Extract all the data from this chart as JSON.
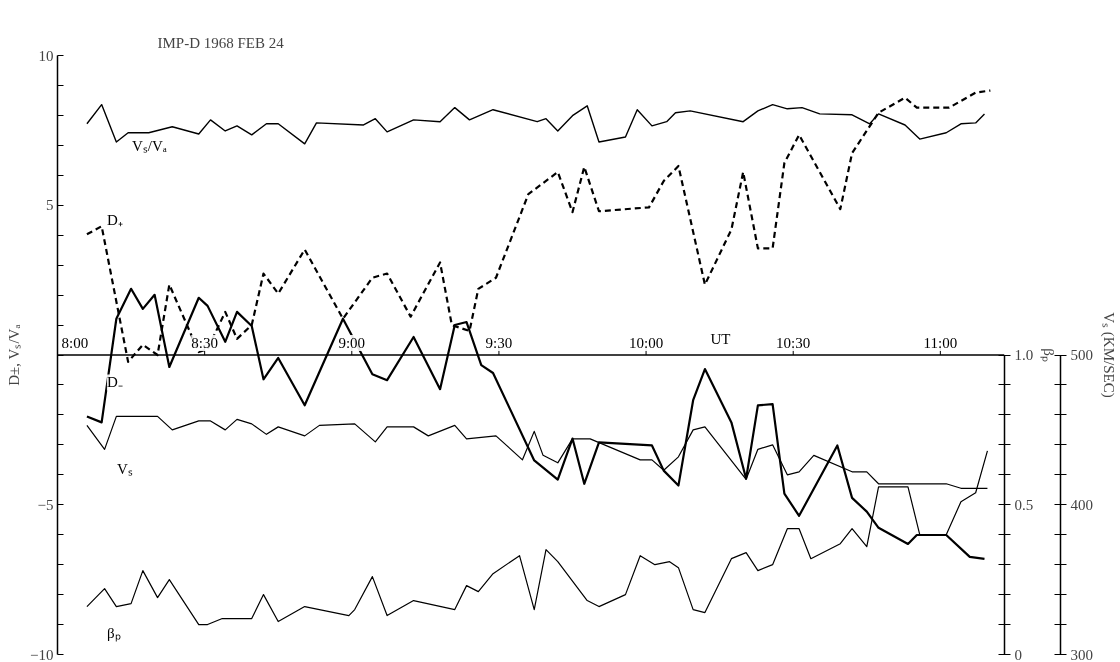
{
  "chart_data": {
    "type": "line",
    "title": "IMP-D 1968 FEB 24",
    "xlabel": "UT",
    "ylabel": "D±, Vₛ/Vₐ",
    "y2label": "βₚ",
    "y3label": "Vₛ (KM/SEC)",
    "xlim": [
      8,
      11.218
    ],
    "ylim": [
      -10,
      10
    ],
    "y2lim": [
      0,
      1
    ],
    "y3lim": [
      300,
      500
    ],
    "xticks": [
      {
        "value": 8,
        "label": "8:00"
      },
      {
        "value": 8.5,
        "label": "8:30"
      },
      {
        "value": 9,
        "label": "9:00"
      },
      {
        "value": 9.5,
        "label": "9:30"
      },
      {
        "value": 10,
        "label": "10:00"
      },
      {
        "value": 10.5,
        "label": "10:30"
      },
      {
        "value": 11,
        "label": "11:00"
      }
    ],
    "yticks": [
      10,
      {
        "value": 9,
        "label": null
      },
      {
        "value": 8,
        "label": null
      },
      {
        "value": 7,
        "label": null
      },
      {
        "value": 6,
        "label": null
      },
      5,
      {
        "value": 4,
        "label": null
      },
      {
        "value": 3,
        "label": null
      },
      {
        "value": 2,
        "label": null
      },
      {
        "value": 1,
        "label": null
      },
      {
        "value": 0,
        "label": null
      },
      {
        "value": -1,
        "label": null
      },
      {
        "value": -2,
        "label": null
      },
      {
        "value": -3,
        "label": null
      },
      {
        "value": -4,
        "label": null
      },
      {
        "value": -5,
        "label": "−5"
      },
      {
        "value": -6,
        "label": null
      },
      {
        "value": -7,
        "label": null
      },
      {
        "value": -8,
        "label": null
      },
      {
        "value": -9,
        "label": null
      },
      {
        "value": -10,
        "label": "−10"
      }
    ],
    "y2ticks": [
      0,
      {
        "value": 0.1,
        "label": null
      },
      {
        "value": 0.2,
        "label": null
      },
      {
        "value": 0.3,
        "label": null
      },
      {
        "value": 0.4,
        "label": null
      },
      0.5,
      {
        "value": 0.6,
        "label": null
      },
      {
        "value": 0.7,
        "label": null
      },
      {
        "value": 0.8,
        "label": null
      },
      {
        "value": 0.9,
        "label": null
      },
      {
        "value": 1,
        "label": "1.0"
      }
    ],
    "y3ticks": [
      300,
      {
        "value": 320,
        "label": null
      },
      {
        "value": 340,
        "label": null
      },
      {
        "value": 360,
        "label": null
      },
      {
        "value": 380,
        "label": null
      },
      400,
      {
        "value": 420,
        "label": null
      },
      {
        "value": 440,
        "label": null
      },
      {
        "value": 460,
        "label": null
      },
      {
        "value": 480,
        "label": null
      },
      500
    ],
    "grid": false,
    "marker": "none",
    "series": [
      {
        "name": "Vₛ/Vₐ",
        "color": "#000000",
        "line_style": "solid",
        "x": [
          8.1,
          8.15,
          8.2,
          8.24,
          8.31,
          8.39,
          8.48,
          8.52,
          8.57,
          8.61,
          8.66,
          8.71,
          8.75,
          8.84,
          8.88,
          9.04,
          9.08,
          9.12,
          9.21,
          9.3,
          9.35,
          9.4,
          9.48,
          9.63,
          9.66,
          9.7,
          9.75,
          9.8,
          9.84,
          9.93,
          9.97,
          10.02,
          10.07,
          10.1,
          10.15,
          10.33,
          10.38,
          10.43,
          10.48,
          10.53,
          10.59,
          10.7,
          10.76,
          10.79,
          10.88,
          10.93,
          11.02,
          11.07,
          11.12,
          11.15
        ],
        "values": [
          7.72,
          8.36,
          7.11,
          7.42,
          7.42,
          7.62,
          7.38,
          7.85,
          7.48,
          7.65,
          7.35,
          7.72,
          7.72,
          7.05,
          7.75,
          7.68,
          7.89,
          7.45,
          7.85,
          7.79,
          8.26,
          7.85,
          8.19,
          7.79,
          7.89,
          7.48,
          7.99,
          8.32,
          7.11,
          7.28,
          8.19,
          7.65,
          7.79,
          8.09,
          8.15,
          7.79,
          8.15,
          8.36,
          8.22,
          8.26,
          8.05,
          8.02,
          7.72,
          8.05,
          7.68,
          7.21,
          7.42,
          7.72,
          7.75,
          8.05
        ]
      },
      {
        "name": "D₊",
        "color": "#000000",
        "line_style": "dashed",
        "x": [
          8.1,
          8.15,
          8.24,
          8.29,
          8.34,
          8.38,
          8.48,
          8.51,
          8.57,
          8.61,
          8.66,
          8.7,
          8.75,
          8.84,
          8.97,
          9.07,
          9.12,
          9.2,
          9.3,
          9.34,
          9.4,
          9.43,
          9.49,
          9.6,
          9.7,
          9.75,
          9.79,
          9.84,
          10.01,
          10.06,
          10.11,
          10.2,
          10.29,
          10.33,
          10.38,
          10.43,
          10.47,
          10.52,
          10.66,
          10.7,
          10.79,
          10.88,
          10.92,
          11.03,
          11.12,
          11.17
        ],
        "values": [
          4.03,
          4.3,
          -0.23,
          0.34,
          0.0,
          2.35,
          0.1,
          0.2,
          1.44,
          0.54,
          1.0,
          2.72,
          2.05,
          3.52,
          1.21,
          2.58,
          2.72,
          1.28,
          3.09,
          1.0,
          0.8,
          2.21,
          2.58,
          5.37,
          6.11,
          4.77,
          6.28,
          4.8,
          4.93,
          5.81,
          6.31,
          2.35,
          4.19,
          6.11,
          3.56,
          3.56,
          6.41,
          7.35,
          4.87,
          6.74,
          8.09,
          8.59,
          8.26,
          8.26,
          8.76,
          8.83
        ]
      },
      {
        "name": "D₋",
        "color": "#000000",
        "line_style": "solid",
        "x": [
          8.1,
          8.15,
          8.2,
          8.25,
          8.29,
          8.33,
          8.38,
          8.48,
          8.51,
          8.57,
          8.61,
          8.66,
          8.7,
          8.75,
          8.84,
          8.97,
          9.07,
          9.12,
          9.21,
          9.3,
          9.35,
          9.39,
          9.44,
          9.48,
          9.62,
          9.7,
          9.75,
          9.79,
          9.84,
          10.02,
          10.06,
          10.11,
          10.16,
          10.2,
          10.29,
          10.34,
          10.38,
          10.43,
          10.47,
          10.52,
          10.65,
          10.7,
          10.75,
          10.79,
          10.89,
          10.92,
          11.02,
          11.1,
          11.15
        ],
        "values": [
          -2.05,
          -2.25,
          1.21,
          2.21,
          1.54,
          2.01,
          -0.4,
          1.91,
          1.64,
          0.44,
          1.44,
          0.97,
          -0.81,
          -0.1,
          -1.68,
          1.21,
          -0.64,
          -0.84,
          0.6,
          -1.14,
          1.0,
          1.1,
          -0.34,
          -0.6,
          -3.52,
          -4.16,
          -2.79,
          -4.3,
          -2.92,
          -3.02,
          -3.86,
          -4.36,
          -1.51,
          -0.47,
          -2.25,
          -4.13,
          -1.68,
          -1.64,
          -4.63,
          -5.37,
          -3.02,
          -4.77,
          -5.23,
          -5.77,
          -6.31,
          -6.01,
          -6.01,
          -6.74,
          -6.81
        ]
      },
      {
        "name": "Vₛ",
        "color": "#000000",
        "line_style": "solid",
        "axis": "y3",
        "x": [
          8.1,
          8.16,
          8.2,
          8.34,
          8.39,
          8.48,
          8.52,
          8.57,
          8.61,
          8.66,
          8.71,
          8.75,
          8.84,
          8.89,
          9.01,
          9.08,
          9.12,
          9.21,
          9.26,
          9.35,
          9.39,
          9.49,
          9.58,
          9.62,
          9.65,
          9.7,
          9.75,
          9.81,
          9.98,
          10.02,
          10.06,
          10.11,
          10.16,
          10.2,
          10.34,
          10.38,
          10.43,
          10.48,
          10.52,
          10.57,
          10.7,
          10.75,
          10.79,
          10.89,
          11.02,
          11.07,
          11.16
        ],
        "values": [
          453,
          437,
          459,
          459,
          450,
          456,
          456,
          450,
          457,
          454,
          447,
          452,
          446,
          453,
          454,
          442,
          452,
          452,
          446,
          453,
          444,
          446,
          430,
          449,
          433,
          428,
          444,
          444,
          430,
          430,
          423,
          432,
          450,
          452,
          417,
          437,
          440,
          420,
          422,
          433,
          422,
          422,
          414,
          414,
          414,
          411,
          411
        ]
      },
      {
        "name": "βₚ",
        "color": "#000000",
        "line_style": "solid",
        "axis": "y2",
        "x": [
          8.1,
          8.16,
          8.2,
          8.25,
          8.29,
          8.34,
          8.38,
          8.48,
          8.51,
          8.56,
          8.66,
          8.7,
          8.75,
          8.84,
          8.89,
          8.99,
          9.01,
          9.07,
          9.12,
          9.21,
          9.35,
          9.39,
          9.43,
          9.48,
          9.57,
          9.62,
          9.66,
          9.7,
          9.8,
          9.84,
          9.93,
          9.98,
          10.03,
          10.08,
          10.11,
          10.16,
          10.2,
          10.29,
          10.34,
          10.38,
          10.43,
          10.48,
          10.52,
          10.56,
          10.66,
          10.7,
          10.75,
          10.79,
          10.89,
          10.93,
          11.02,
          11.07,
          11.12,
          11.16
        ],
        "values": [
          0.16,
          0.22,
          0.16,
          0.17,
          0.28,
          0.19,
          0.25,
          0.1,
          0.1,
          0.12,
          0.12,
          0.2,
          0.11,
          0.16,
          0.15,
          0.13,
          0.15,
          0.26,
          0.13,
          0.18,
          0.15,
          0.23,
          0.21,
          0.27,
          0.33,
          0.15,
          0.35,
          0.31,
          0.18,
          0.16,
          0.2,
          0.33,
          0.3,
          0.31,
          0.29,
          0.15,
          0.14,
          0.32,
          0.34,
          0.28,
          0.3,
          0.42,
          0.42,
          0.32,
          0.37,
          0.42,
          0.36,
          0.56,
          0.56,
          0.4,
          0.4,
          0.51,
          0.54,
          0.68
        ]
      }
    ]
  }
}
